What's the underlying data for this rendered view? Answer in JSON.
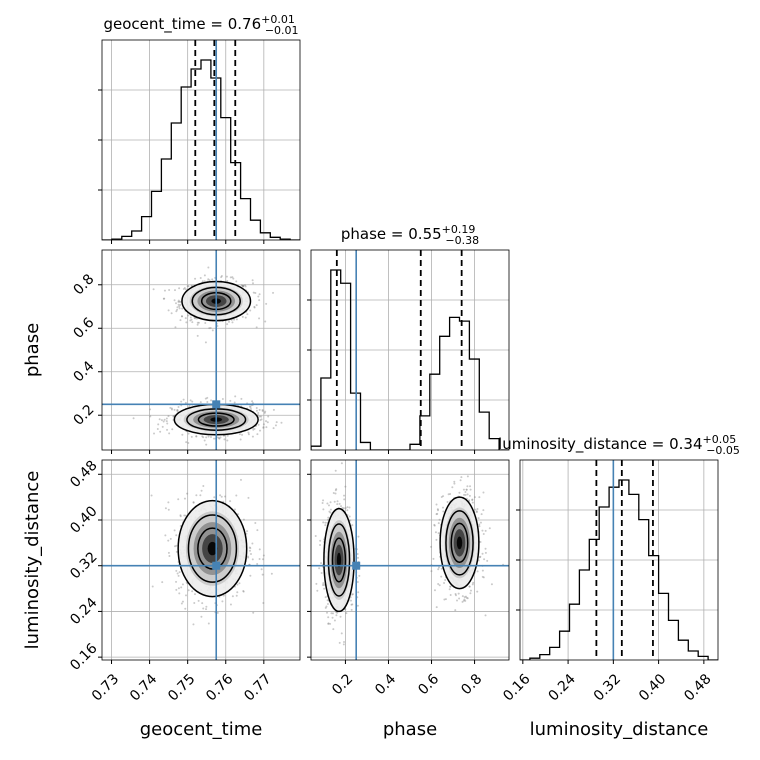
{
  "chart_data": {
    "type": "corner",
    "colors": {
      "truth": "#4682b4",
      "hist": "#000000",
      "grid": "#b0b0b0",
      "scatter": "#8a8a8a"
    },
    "parameters": [
      {
        "name": "geocent_time",
        "range": [
          0.7275,
          0.7795
        ],
        "ticks": [
          0.73,
          0.74,
          0.75,
          0.76,
          0.77
        ],
        "tick_labels": [
          "0.73",
          "0.74",
          "0.75",
          "0.76",
          "0.77"
        ],
        "truth": 0.7575,
        "quantiles": [
          0.752,
          0.757,
          0.7625
        ]
      },
      {
        "name": "phase",
        "range": [
          0.04,
          0.96
        ],
        "ticks": [
          0.2,
          0.4,
          0.6,
          0.8
        ],
        "tick_labels": [
          "0.2",
          "0.4",
          "0.6",
          "0.8"
        ],
        "truth": 0.25,
        "quantiles": [
          0.16,
          0.55,
          0.74
        ]
      },
      {
        "name": "luminosity_distance",
        "range": [
          0.155,
          0.505
        ],
        "ticks": [
          0.16,
          0.24,
          0.32,
          0.4,
          0.48
        ],
        "tick_labels": [
          "0.16",
          "0.24",
          "0.32",
          "0.40",
          "0.48"
        ],
        "truth": 0.32,
        "quantiles": [
          0.29,
          0.335,
          0.39
        ]
      }
    ],
    "titles": [
      {
        "param": "geocent_time",
        "value": "0.76",
        "plus": "+0.01",
        "minus": "−0.01"
      },
      {
        "param": "phase",
        "value": "0.55",
        "plus": "+0.19",
        "minus": "−0.38"
      },
      {
        "param": "luminosity_distance",
        "value": "0.34",
        "plus": "+0.05",
        "minus": "−0.05"
      }
    ],
    "histograms": [
      {
        "param": "geocent_time",
        "bin_edges": [
          0.7275,
          0.7301,
          0.7327,
          0.7353,
          0.7379,
          0.7405,
          0.7431,
          0.7457,
          0.7483,
          0.7509,
          0.7535,
          0.7561,
          0.7587,
          0.7613,
          0.7639,
          0.7665,
          0.7691,
          0.7717,
          0.7743,
          0.7769,
          0.7795
        ],
        "counts": [
          0.0,
          0.005,
          0.02,
          0.05,
          0.13,
          0.27,
          0.45,
          0.65,
          0.85,
          0.95,
          1.0,
          0.9,
          0.68,
          0.43,
          0.23,
          0.11,
          0.04,
          0.015,
          0.005,
          0.0
        ]
      },
      {
        "param": "phase",
        "bin_edges": [
          0.04,
          0.086,
          0.132,
          0.178,
          0.224,
          0.27,
          0.316,
          0.362,
          0.408,
          0.454,
          0.5,
          0.546,
          0.592,
          0.638,
          0.684,
          0.73,
          0.776,
          0.822,
          0.868,
          0.914,
          0.96
        ],
        "counts": [
          0.02,
          0.38,
          0.95,
          0.88,
          0.3,
          0.04,
          0.0,
          0.0,
          0.0,
          0.0,
          0.03,
          0.18,
          0.4,
          0.6,
          0.7,
          0.68,
          0.48,
          0.2,
          0.06,
          0.0
        ]
      },
      {
        "param": "luminosity_distance",
        "bin_edges": [
          0.155,
          0.1725,
          0.19,
          0.2075,
          0.225,
          0.2425,
          0.26,
          0.2775,
          0.295,
          0.3125,
          0.33,
          0.3475,
          0.365,
          0.3825,
          0.4,
          0.4175,
          0.435,
          0.4525,
          0.47,
          0.4875,
          0.505
        ],
        "counts": [
          0.0,
          0.01,
          0.03,
          0.07,
          0.16,
          0.31,
          0.5,
          0.67,
          0.85,
          0.96,
          1.0,
          0.92,
          0.78,
          0.58,
          0.37,
          0.22,
          0.11,
          0.05,
          0.02,
          0.0
        ]
      }
    ],
    "contours_2d": [
      {
        "x": "geocent_time",
        "y": "phase",
        "modes": [
          {
            "center": [
              0.7575,
              0.725
            ],
            "sigma": [
              0.0045,
              0.045
            ],
            "levels": 3
          },
          {
            "center": [
              0.7575,
              0.18
            ],
            "sigma": [
              0.0055,
              0.035
            ],
            "levels": 3
          }
        ]
      },
      {
        "x": "geocent_time",
        "y": "luminosity_distance",
        "modes": [
          {
            "center": [
              0.7565,
              0.35
            ],
            "sigma": [
              0.0045,
              0.042
            ],
            "levels": 3
          }
        ]
      },
      {
        "x": "phase",
        "y": "luminosity_distance",
        "modes": [
          {
            "center": [
              0.17,
              0.33
            ],
            "sigma": [
              0.035,
              0.045
            ],
            "levels": 3
          },
          {
            "center": [
              0.73,
              0.36
            ],
            "sigma": [
              0.045,
              0.04
            ],
            "levels": 3
          }
        ]
      }
    ],
    "grid": true
  }
}
